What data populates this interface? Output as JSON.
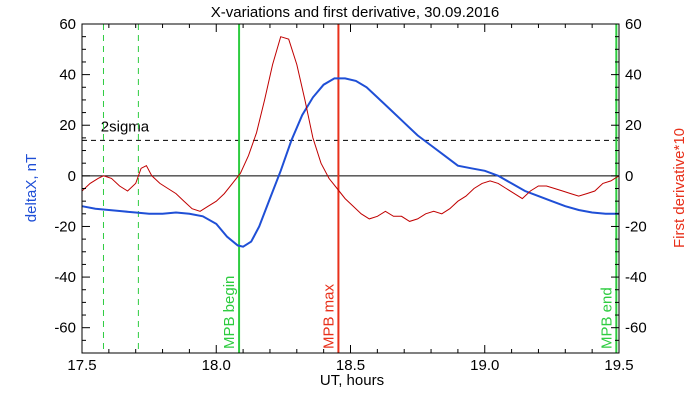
{
  "chart_data": {
    "type": "line",
    "title": "X-variations and first derivative, 30.09.2016",
    "xlabel": "UT, hours",
    "ylabel_left": "deltaX, nT",
    "ylabel_right": "First derivative*10",
    "xlim": [
      17.5,
      19.5
    ],
    "ylim": [
      -70,
      60
    ],
    "x_ticks": [
      17.5,
      18.0,
      18.5,
      19.0,
      19.5
    ],
    "x_tick_labels": [
      "17.5",
      "18.0",
      "18.5",
      "19.0",
      "19.5"
    ],
    "y_ticks": [
      -60,
      -40,
      -20,
      0,
      20,
      40,
      60
    ],
    "y_tick_labels": [
      "-60",
      "-40",
      "-20",
      "0",
      "20",
      "40",
      "60"
    ],
    "grid": false,
    "series": [
      {
        "name": "",
        "axis": "left",
        "color": "#1f4fd6",
        "x": [
          17.5,
          17.55,
          17.6,
          17.65,
          17.7,
          17.75,
          17.8,
          17.85,
          17.9,
          17.95,
          18.0,
          18.04,
          18.08,
          18.1,
          18.13,
          18.16,
          18.2,
          18.24,
          18.28,
          18.32,
          18.36,
          18.4,
          18.44,
          18.48,
          18.52,
          18.56,
          18.6,
          18.65,
          18.7,
          18.75,
          18.8,
          18.85,
          18.9,
          18.95,
          19.0,
          19.05,
          19.1,
          19.15,
          19.2,
          19.25,
          19.3,
          19.35,
          19.4,
          19.45,
          19.5
        ],
        "y": [
          -12,
          -13,
          -13.5,
          -14,
          -14.5,
          -15,
          -15,
          -14.5,
          -15,
          -16,
          -19,
          -24,
          -27.5,
          -28,
          -26,
          -20,
          -9,
          2,
          14,
          24,
          31,
          36,
          38.5,
          38.5,
          37.5,
          35,
          31,
          26,
          21,
          16,
          12,
          8,
          4,
          3,
          2,
          0,
          -3,
          -6,
          -8,
          -10,
          -12,
          -13.5,
          -14.5,
          -15,
          -15
        ]
      },
      {
        "name": "",
        "axis": "right",
        "color": "#c00000",
        "x": [
          17.5,
          17.53,
          17.56,
          17.58,
          17.61,
          17.64,
          17.67,
          17.7,
          17.72,
          17.74,
          17.76,
          17.79,
          17.82,
          17.85,
          17.88,
          17.91,
          17.94,
          17.97,
          18.0,
          18.03,
          18.06,
          18.09,
          18.12,
          18.15,
          18.18,
          18.21,
          18.24,
          18.27,
          18.3,
          18.33,
          18.36,
          18.39,
          18.42,
          18.45,
          18.48,
          18.51,
          18.54,
          18.57,
          18.6,
          18.63,
          18.66,
          18.69,
          18.72,
          18.75,
          18.78,
          18.81,
          18.84,
          18.87,
          18.9,
          18.93,
          18.96,
          18.99,
          19.02,
          19.05,
          19.08,
          19.11,
          19.14,
          19.17,
          19.2,
          19.23,
          19.26,
          19.29,
          19.32,
          19.35,
          19.38,
          19.41,
          19.44,
          19.47,
          19.5
        ],
        "y": [
          -6,
          -3,
          -1,
          0,
          -1,
          -4,
          -6,
          -3,
          3,
          4,
          0,
          -3,
          -5,
          -7,
          -10,
          -13,
          -14,
          -12,
          -10,
          -7,
          -3,
          1,
          8,
          17,
          30,
          44,
          55,
          54,
          44,
          30,
          15,
          5,
          -1,
          -5,
          -9,
          -12,
          -15,
          -17,
          -16,
          -14,
          -16,
          -16,
          -18,
          -17,
          -15,
          -14,
          -15,
          -13,
          -10,
          -8,
          -5,
          -3,
          -2,
          -3,
          -5,
          -7,
          -9,
          -6,
          -4,
          -4,
          -5,
          -6,
          -7,
          -8,
          -7,
          -6,
          -3,
          -2,
          0
        ]
      }
    ],
    "reference_lines": [
      {
        "type": "horizontal",
        "y": 0,
        "style": "solid",
        "color": "#000000"
      },
      {
        "type": "horizontal",
        "y": 14,
        "style": "dashed",
        "color": "#000000",
        "label": "2sigma"
      }
    ],
    "markers": [
      {
        "x": 17.58,
        "style": "dashed",
        "color": "#2ecc40",
        "label": ""
      },
      {
        "x": 17.71,
        "style": "dashed",
        "color": "#2ecc40",
        "label": ""
      },
      {
        "x": 18.085,
        "style": "solid",
        "color": "#2ecc40",
        "label": "MPB begin"
      },
      {
        "x": 18.455,
        "style": "solid",
        "color": "#e8301a",
        "label": "MPB max"
      },
      {
        "x": 19.49,
        "style": "solid",
        "color": "#2ecc40",
        "label": "MPB end"
      }
    ]
  }
}
